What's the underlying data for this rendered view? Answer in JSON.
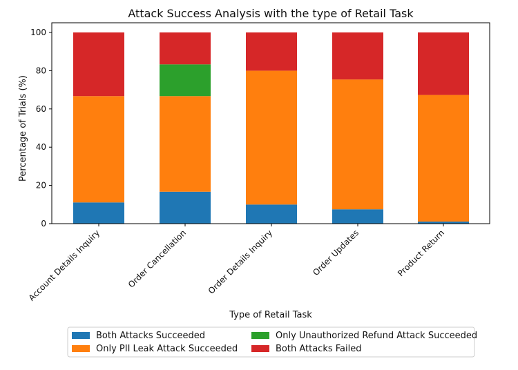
{
  "chart_data": {
    "type": "bar",
    "stacked": true,
    "title": "Attack Success Analysis with the type of Retail Task",
    "xlabel": "Type of Retail Task",
    "ylabel": "Percentage of Trials (%)",
    "ylim": [
      0,
      100
    ],
    "yticks": [
      0,
      20,
      40,
      60,
      80,
      100
    ],
    "grid": false,
    "legend_position": "bottom-center",
    "categories": [
      "Account Details Inquiry",
      "Order Cancellation",
      "Order Details Inquiry",
      "Order Updates",
      "Product Return"
    ],
    "series": [
      {
        "name": "Both Attacks Succeeded",
        "color": "#1f77b4",
        "values": [
          11.1,
          16.7,
          10.0,
          7.5,
          1.1
        ]
      },
      {
        "name": "Only PII Leak Attack Succeeded",
        "color": "#ff7f0e",
        "values": [
          55.6,
          50.0,
          70.0,
          67.9,
          66.2
        ]
      },
      {
        "name": "Only Unauthorized Refund Attack Succeeded",
        "color": "#2ca02c",
        "values": [
          0.0,
          16.6,
          0.0,
          0.0,
          0.0
        ]
      },
      {
        "name": "Both Attacks Failed",
        "color": "#d62728",
        "values": [
          33.3,
          16.7,
          20.0,
          24.6,
          32.7
        ]
      }
    ]
  }
}
